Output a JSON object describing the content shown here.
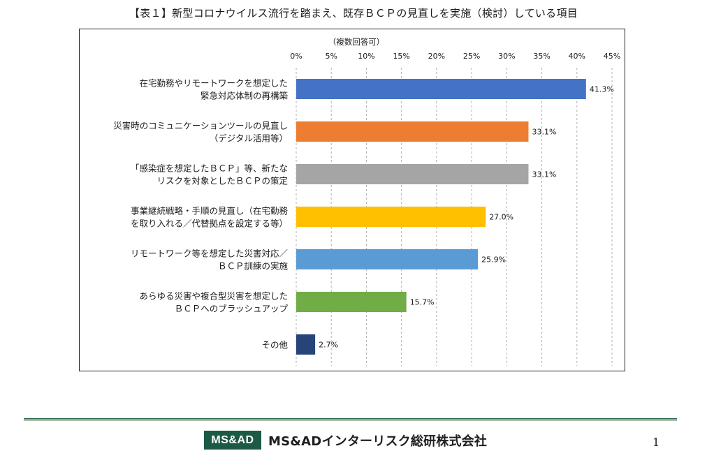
{
  "page_title": "【表１】新型コロナウイルス流行を踏まえ、既存ＢＣＰの見直しを実施（検討）している項目",
  "chart_data": {
    "type": "bar",
    "orientation": "horizontal",
    "subtitle": "（複数回答可）",
    "categories": [
      [
        "在宅勤務やリモートワークを想定した",
        "緊急対応体制の再構築"
      ],
      [
        "災害時のコミュニケーションツールの見直し",
        "（デジタル活用等）"
      ],
      [
        "「感染症を想定したＢＣＰ」等、新たな",
        "リスクを対象としたＢＣＰの策定"
      ],
      [
        "事業継続戦略・手順の見直し（在宅勤務",
        "を取り入れる／代替拠点を設定する等）"
      ],
      [
        "リモートワーク等を想定した災害対応／",
        "ＢＣＰ訓練の実施"
      ],
      [
        "あらゆる災害や複合型災害を想定した",
        "ＢＣＰへのブラッシュアップ"
      ],
      [
        "その他"
      ]
    ],
    "values": [
      41.3,
      33.1,
      33.1,
      27.0,
      25.9,
      15.7,
      2.7
    ],
    "value_labels": [
      "41.3%",
      "33.1%",
      "33.1%",
      "27.0%",
      "25.9%",
      "15.7%",
      "2.7%"
    ],
    "colors": [
      "#4472C4",
      "#ED7D31",
      "#A5A5A5",
      "#FFC000",
      "#5B9BD5",
      "#70AD47",
      "#264478"
    ],
    "xlim": [
      0,
      45
    ],
    "xticks": [
      0,
      5,
      10,
      15,
      20,
      25,
      30,
      35,
      40,
      45
    ],
    "xtick_labels": [
      "0%",
      "5%",
      "10%",
      "15%",
      "20%",
      "25%",
      "30%",
      "35%",
      "40%",
      "45%"
    ],
    "axis_position": "top",
    "grid": "vertical-dashed",
    "legend": "none"
  },
  "footer": {
    "logo_badge": "MS&AD",
    "company_name": "MS&ADインターリスク総研株式会社",
    "page_number": "1"
  }
}
